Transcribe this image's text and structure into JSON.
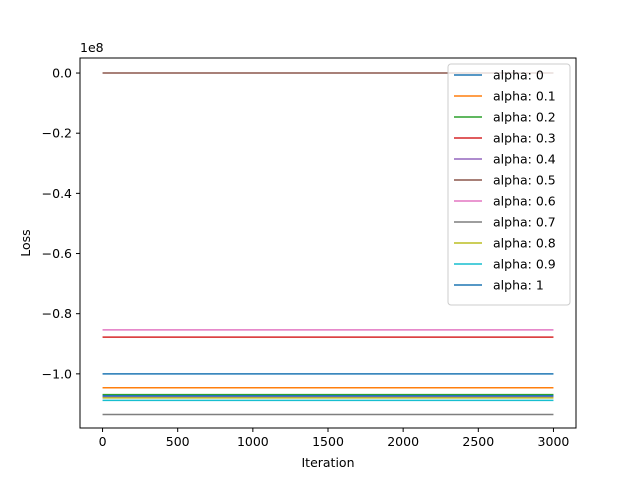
{
  "chart_data": {
    "type": "line",
    "title": "",
    "xlabel": "Iteration",
    "ylabel": "Loss",
    "offset_text": "1e8",
    "y_scale_multiplier": 100000000,
    "xlim": [
      -150,
      3150
    ],
    "ylim": [
      -1.18,
      0.05
    ],
    "xticks": [
      0,
      500,
      1000,
      1500,
      2000,
      2500,
      3000
    ],
    "xtick_labels": [
      "0",
      "500",
      "1000",
      "1500",
      "2000",
      "2500",
      "3000"
    ],
    "yticks": [
      0.0,
      -0.2,
      -0.4,
      -0.6,
      -0.8,
      -1.0
    ],
    "ytick_labels": [
      "0.0",
      "−0.2",
      "−0.4",
      "−0.6",
      "−0.8",
      "−1.0"
    ],
    "grid": false,
    "legend_position": "top-right",
    "x": [
      0,
      3000
    ],
    "series": [
      {
        "name": "alpha: 0",
        "color": "#1f77b4",
        "values": [
          -1.0,
          -1.0
        ]
      },
      {
        "name": "alpha: 0.1",
        "color": "#ff7f0e",
        "values": [
          -1.046,
          -1.046
        ]
      },
      {
        "name": "alpha: 0.2",
        "color": "#2ca02c",
        "values": [
          -1.069,
          -1.069
        ]
      },
      {
        "name": "alpha: 0.3",
        "color": "#d62728",
        "values": [
          -0.878,
          -0.878
        ]
      },
      {
        "name": "alpha: 0.4",
        "color": "#9467bd",
        "values": [
          -1.076,
          -1.076
        ]
      },
      {
        "name": "alpha: 0.5",
        "color": "#8c564b",
        "values": [
          0.0,
          0.0
        ]
      },
      {
        "name": "alpha: 0.6",
        "color": "#e377c2",
        "values": [
          -0.854,
          -0.854
        ]
      },
      {
        "name": "alpha: 0.7",
        "color": "#7f7f7f",
        "values": [
          -1.135,
          -1.135
        ]
      },
      {
        "name": "alpha: 0.8",
        "color": "#bcbd22",
        "values": [
          -1.08,
          -1.08
        ]
      },
      {
        "name": "alpha: 0.9",
        "color": "#17becf",
        "values": [
          -1.088,
          -1.088
        ]
      },
      {
        "name": "alpha: 1",
        "color": "#1f77b4",
        "values": [
          -1.073,
          -1.073
        ]
      }
    ]
  }
}
